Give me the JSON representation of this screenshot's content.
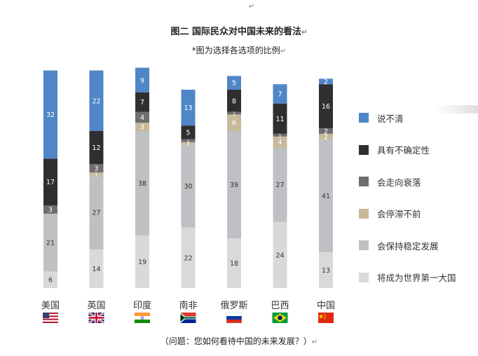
{
  "title": "图二  国际民众对中国未来的看法",
  "subtitle": "*图为选择各选项的比例",
  "footer": "（问题：您如何看待中国的未来发展？）",
  "return_mark": "↵",
  "chart_data": {
    "type": "bar",
    "stacked": true,
    "categories": [
      "美国",
      "英国",
      "印度",
      "南非",
      "俄罗斯",
      "巴西",
      "中国"
    ],
    "series": [
      {
        "name": "将成为世界第一大国",
        "color": "#d9d9d9",
        "label_color": "#333333",
        "values": [
          6,
          14,
          19,
          22,
          18,
          24,
          13
        ]
      },
      {
        "name": "会保持稳定发展",
        "color": "#bfc0c3",
        "label_color": "#333333",
        "values": [
          21,
          27,
          38,
          30,
          39,
          27,
          41
        ]
      },
      {
        "name": "会停滞不前",
        "color": "#c8b99a",
        "label_color": "#ffffff",
        "values": [
          null,
          1,
          3,
          1,
          6,
          4,
          2
        ]
      },
      {
        "name": "会走向衰落",
        "color": "#6e6e70",
        "label_color": "#ffffff",
        "values": [
          3,
          3,
          4,
          1,
          1,
          1,
          2
        ]
      },
      {
        "name": "具有不确定性",
        "color": "#2f2f31",
        "label_color": "#ffffff",
        "values": [
          17,
          12,
          7,
          5,
          8,
          11,
          16
        ]
      },
      {
        "name": "说不清",
        "color": "#4f86c6",
        "label_color": "#ffffff",
        "values": [
          32,
          22,
          9,
          13,
          5,
          7,
          2
        ]
      }
    ],
    "legend_position": "right",
    "legend_order": [
      "说不清",
      "具有不确定性",
      "会走向衰落",
      "会停滞不前",
      "会保持稳定发展",
      "将成为世界第一大国"
    ],
    "flags": [
      "us-flag",
      "uk-flag",
      "india-flag",
      "south-africa-flag",
      "russia-flag",
      "brazil-flag",
      "china-flag"
    ]
  }
}
